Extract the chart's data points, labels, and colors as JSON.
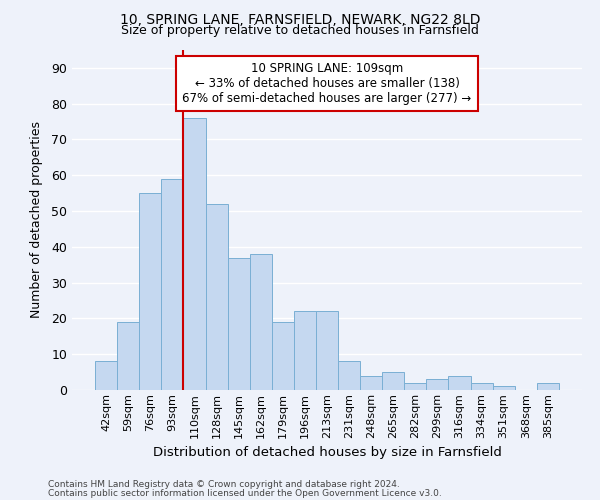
{
  "title1": "10, SPRING LANE, FARNSFIELD, NEWARK, NG22 8LD",
  "title2": "Size of property relative to detached houses in Farnsfield",
  "xlabel": "Distribution of detached houses by size in Farnsfield",
  "ylabel": "Number of detached properties",
  "categories": [
    "42sqm",
    "59sqm",
    "76sqm",
    "93sqm",
    "110sqm",
    "128sqm",
    "145sqm",
    "162sqm",
    "179sqm",
    "196sqm",
    "213sqm",
    "231sqm",
    "248sqm",
    "265sqm",
    "282sqm",
    "299sqm",
    "316sqm",
    "334sqm",
    "351sqm",
    "368sqm",
    "385sqm"
  ],
  "values": [
    8,
    19,
    55,
    59,
    76,
    52,
    37,
    38,
    19,
    22,
    22,
    8,
    4,
    5,
    2,
    3,
    4,
    2,
    1,
    0,
    2
  ],
  "bar_color": "#c5d8f0",
  "bar_edge_color": "#7aafd4",
  "vline_index": 4,
  "vline_color": "#cc0000",
  "annotation_line1": "10 SPRING LANE: 109sqm",
  "annotation_line2": "← 33% of detached houses are smaller (138)",
  "annotation_line3": "67% of semi-detached houses are larger (277) →",
  "annotation_box_edgecolor": "#cc0000",
  "bg_color": "#eef2fa",
  "grid_color": "#ffffff",
  "ylim": [
    0,
    95
  ],
  "yticks": [
    0,
    10,
    20,
    30,
    40,
    50,
    60,
    70,
    80,
    90
  ],
  "footnote1": "Contains HM Land Registry data © Crown copyright and database right 2024.",
  "footnote2": "Contains public sector information licensed under the Open Government Licence v3.0."
}
